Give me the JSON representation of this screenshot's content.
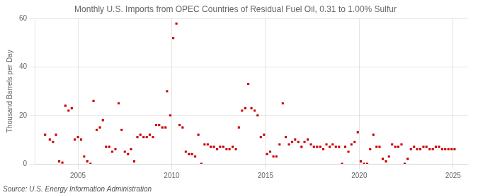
{
  "chart_data": {
    "type": "scatter",
    "title": "Monthly U.S. Imports from OPEC Countries of Residual Fuel Oil, 0.31 to 1.00% Sulfur",
    "ylabel": "Thousand Barrels per Day",
    "annotations": [
      "Source: U.S. Energy Information Administration"
    ],
    "color": "#cc0000",
    "marker": "square",
    "grid": true,
    "xlim": [
      2002.7,
      2025.8
    ],
    "ylim": [
      0,
      60
    ],
    "xticks": [
      2005,
      2010,
      2015,
      2020,
      2025
    ],
    "yticks": [
      0,
      20,
      40,
      60
    ],
    "x": [
      2003.25,
      2003.5,
      2003.67,
      2003.83,
      2004.0,
      2004.17,
      2004.33,
      2004.5,
      2004.67,
      2004.83,
      2005.0,
      2005.17,
      2005.33,
      2005.5,
      2005.67,
      2005.83,
      2006.0,
      2006.17,
      2006.33,
      2006.5,
      2006.67,
      2006.83,
      2007.0,
      2007.17,
      2007.33,
      2007.5,
      2007.67,
      2007.83,
      2008.0,
      2008.17,
      2008.33,
      2008.5,
      2008.67,
      2008.83,
      2009.0,
      2009.17,
      2009.33,
      2009.5,
      2009.67,
      2009.75,
      2009.92,
      2010.08,
      2010.25,
      2010.42,
      2010.58,
      2010.75,
      2010.92,
      2011.08,
      2011.25,
      2011.42,
      2011.58,
      2011.75,
      2011.92,
      2012.08,
      2012.25,
      2012.42,
      2012.58,
      2012.75,
      2012.92,
      2013.08,
      2013.25,
      2013.42,
      2013.58,
      2013.75,
      2013.92,
      2014.08,
      2014.25,
      2014.42,
      2014.58,
      2014.75,
      2014.92,
      2015.08,
      2015.25,
      2015.42,
      2015.58,
      2015.75,
      2015.92,
      2016.08,
      2016.25,
      2016.42,
      2016.58,
      2016.75,
      2016.92,
      2017.08,
      2017.25,
      2017.42,
      2017.58,
      2017.75,
      2017.92,
      2018.08,
      2018.25,
      2018.42,
      2018.58,
      2018.75,
      2018.92,
      2019.08,
      2019.25,
      2019.42,
      2019.58,
      2019.75,
      2019.92,
      2020.08,
      2020.25,
      2020.42,
      2020.58,
      2020.75,
      2020.92,
      2021.08,
      2021.25,
      2021.42,
      2021.58,
      2021.75,
      2021.92,
      2022.08,
      2022.25,
      2022.42,
      2022.58,
      2022.75,
      2022.92,
      2023.08,
      2023.25,
      2023.42,
      2023.58,
      2023.75,
      2023.92,
      2024.08,
      2024.25,
      2024.42,
      2024.58,
      2024.75,
      2024.92,
      2025.08
    ],
    "values": [
      12,
      10,
      9,
      12,
      1,
      0.5,
      24,
      22,
      23,
      10,
      11,
      10,
      3,
      1,
      0,
      26,
      14,
      15,
      18,
      7,
      7,
      5,
      6,
      25,
      14,
      5,
      4,
      6,
      1,
      11,
      12,
      11,
      11,
      12,
      11,
      16,
      16,
      15,
      15,
      30,
      20,
      52,
      58,
      16,
      15,
      5,
      4,
      4,
      3,
      12,
      0,
      8,
      8,
      7,
      7,
      6,
      7,
      7,
      6,
      6,
      7,
      6,
      15,
      22,
      23,
      33,
      23,
      22,
      20,
      11,
      12,
      4,
      5,
      3,
      3,
      8,
      25,
      11,
      8,
      9,
      10,
      9,
      7,
      9,
      10,
      8,
      7,
      7,
      7,
      6,
      8,
      7,
      8,
      7,
      7,
      0,
      7,
      5,
      8,
      9,
      13,
      1,
      0,
      0,
      6,
      12,
      7,
      7,
      2,
      1,
      3,
      8,
      7,
      7,
      8,
      0,
      2,
      6,
      7,
      6,
      6,
      7,
      7,
      6,
      6,
      7,
      7,
      6,
      6,
      6,
      6,
      6
    ]
  }
}
